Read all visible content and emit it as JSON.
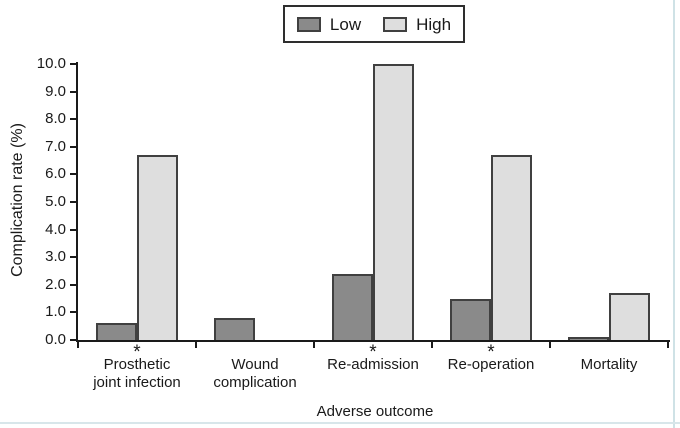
{
  "colors": {
    "axis": "#1a1a1a",
    "text": "#1a1a1a",
    "bar_border": "#404040",
    "legend_border": "#2e2e2e",
    "page_edge": "#cfe2e6",
    "background": "#ffffff"
  },
  "chart_data": {
    "type": "bar",
    "title": "",
    "xlabel": "Adverse outcome",
    "ylabel": "Complication rate (%)",
    "categories": [
      "Prosthetic joint infection",
      "Wound complication",
      "Re-admission",
      "Re-operation",
      "Mortality"
    ],
    "category_lines": [
      [
        "Prosthetic",
        "joint infection"
      ],
      [
        "Wound",
        "complication"
      ],
      [
        "Re-admission"
      ],
      [
        "Re-operation"
      ],
      [
        "Mortality"
      ]
    ],
    "series": [
      {
        "name": "Low",
        "color": "#8a8a8a",
        "values": [
          0.6,
          0.8,
          2.4,
          1.5,
          0.1
        ]
      },
      {
        "name": "High",
        "color": "#dedede",
        "values": [
          6.7,
          null,
          10.0,
          6.7,
          1.7
        ]
      }
    ],
    "ylim": [
      0,
      10
    ],
    "ytick_labels": [
      "0.0",
      "1.0",
      "2.0",
      "3.0",
      "4.0",
      "5.0",
      "6.0",
      "7.0",
      "8.0",
      "9.0",
      "10.0"
    ],
    "legend": {
      "position": "top-center",
      "entries": [
        "Low",
        "High"
      ]
    },
    "significant": [
      true,
      false,
      true,
      true,
      false
    ],
    "significance_symbol": "*",
    "grid": false
  }
}
